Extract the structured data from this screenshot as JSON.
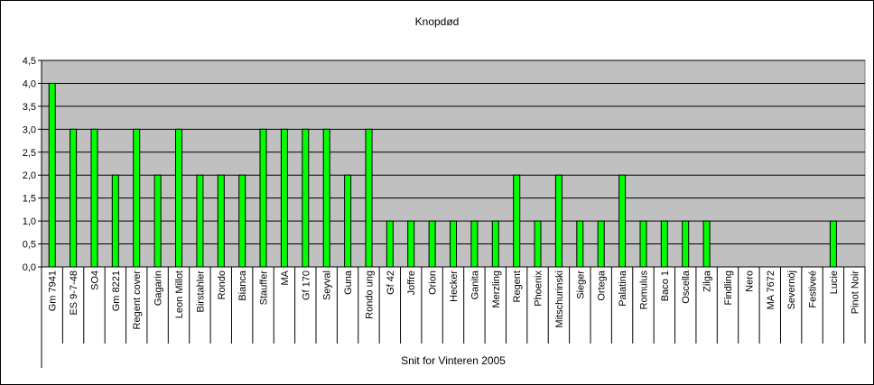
{
  "chart_data": {
    "type": "bar",
    "title": "Knopdød",
    "xlabel": "Snit for Vinteren 2005",
    "ylabel": "",
    "ylim": [
      0,
      4.5
    ],
    "ytick_step": 0.5,
    "yticks": [
      "0,0",
      "0,5",
      "1,0",
      "1,5",
      "2,0",
      "2,5",
      "3,0",
      "3,5",
      "4,0",
      "4,5"
    ],
    "grid": true,
    "legend": "none",
    "colors": {
      "bar": "#00ff00",
      "bar_edge": "#000000",
      "plot_bg": "#c0c0c0",
      "grid": "#000000"
    },
    "categories": [
      "Gm 7941",
      "ES 9-7-48",
      "SO4",
      "Gm 8221",
      "Regent cover",
      "Gagarin",
      "Leon Millot",
      "Birstahler",
      "Rondo",
      "Bianca",
      "Stauffer",
      "MA",
      "Gf 170",
      "Seyval",
      "Guna",
      "Rondo ung",
      "Gf 42",
      "Joffre",
      "Orion",
      "Hecker",
      "Ganita",
      "Merzling",
      "Regent",
      "Phoenix",
      "Mitschurinski",
      "Sieger",
      "Ortega",
      "Palatina",
      "Romulus",
      "Baco 1",
      "Oscella",
      "Zilga",
      "Findling",
      "Nero",
      "MA 7672",
      "Severnöj",
      "Festiveé",
      "Lucie",
      "Pinot Noir"
    ],
    "values": [
      4,
      3,
      3,
      2,
      3,
      2,
      3,
      2,
      2,
      2,
      3,
      3,
      3,
      3,
      2,
      3,
      1,
      1,
      1,
      1,
      1,
      1,
      2,
      1,
      2,
      1,
      1,
      2,
      1,
      1,
      1,
      1,
      0,
      0,
      0,
      0,
      0,
      1,
      0
    ]
  }
}
